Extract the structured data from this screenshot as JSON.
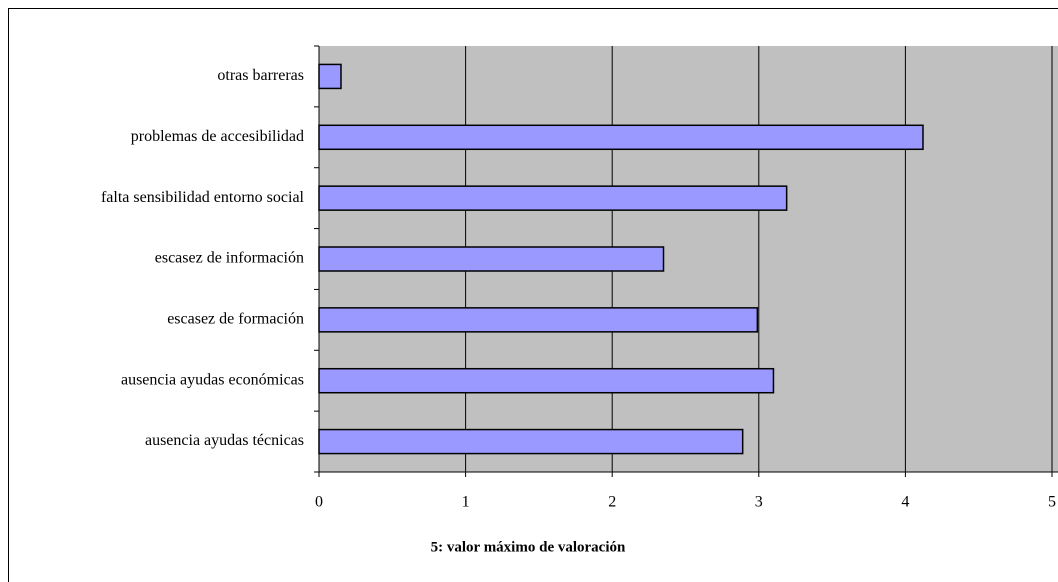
{
  "chart_data": {
    "type": "bar",
    "orientation": "horizontal",
    "x_label": "5: valor máximo de valoración",
    "categories": [
      "otras barreras",
      "problemas de accesibilidad",
      "falta sensibilidad entorno social",
      "escasez de  información",
      "escasez de  formación",
      "ausencia ayudas económicas",
      "ausencia ayudas técnicas"
    ],
    "values": [
      0.15,
      4.12,
      3.19,
      2.35,
      2.99,
      3.1,
      2.89
    ],
    "color": "#9999ff",
    "plot_background": "#c0c0c0",
    "xlim": [
      0,
      5
    ],
    "xticks": [
      0,
      1,
      2,
      3,
      4,
      5
    ],
    "grid": true
  }
}
